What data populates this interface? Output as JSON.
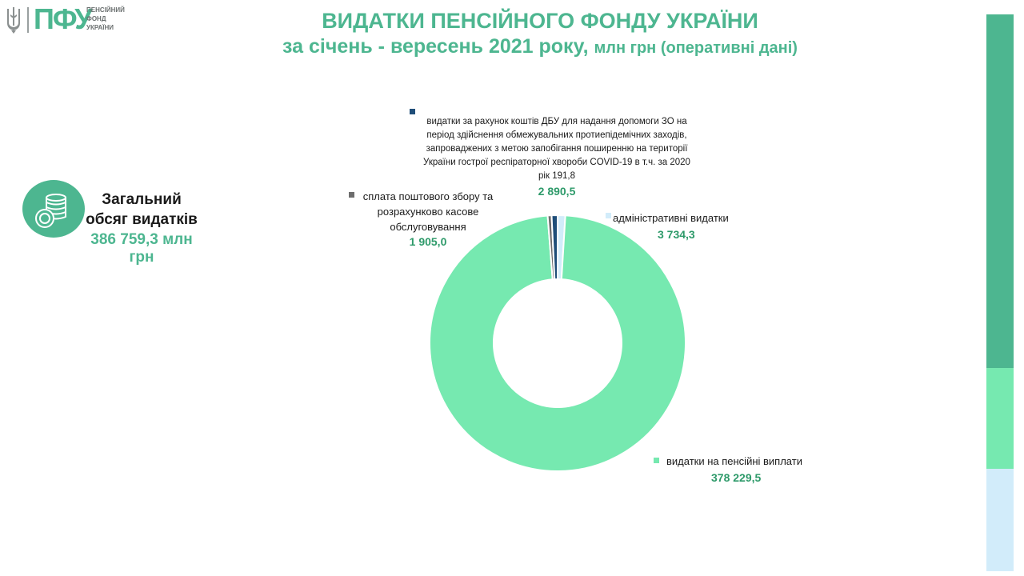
{
  "logo": {
    "mark": "ПФУ",
    "line1": "ПЕНСІЙНИЙ",
    "line2": "ФОНД",
    "line3": "УКРАЇНИ"
  },
  "title": {
    "line1": "ВИДАТКИ ПЕНСІЙНОГО ФОНДУ УКРАЇНИ",
    "line2_main": "за січень - вересень 2021 року,",
    "line2_small": "млн грн (оперативні дані)"
  },
  "total": {
    "label_line1": "Загальний",
    "label_line2": "обсяг видатків",
    "value": "386 759,3 млн грн",
    "icon": "coins-icon"
  },
  "colors": {
    "accent": "#4db690",
    "value_text": "#2e9a6a",
    "pension": "#76e9b0",
    "admin": "#d2ecfa",
    "dbu": "#1f4e79",
    "postal": "#6d6d6d"
  },
  "chart_data": {
    "type": "pie",
    "variant": "donut",
    "unit": "млн грн",
    "slices": [
      {
        "label": "видатки на пенсійні виплати",
        "value": 378229.5,
        "value_label": "378 229,5",
        "color": "#76e9b0"
      },
      {
        "label": "сплата поштового збору та розрахунково касове обслуговування",
        "label_lines": [
          "сплата поштового збору та",
          "розрахунково касове",
          "обслуговування"
        ],
        "value": 1905.0,
        "value_label": "1 905,0",
        "color": "#6d6d6d"
      },
      {
        "label": "видатки за рахунок коштів ДБУ для надання допомоги ЗО на період здійснення обмежувальних протиепідемічних заходів, запроваджених з метою запобігання поширенню на території України гострої респіраторної хвороби COVID-19 в т.ч. за 2020 рік 191,8",
        "label_lines": [
          "видатки за рахунок коштів ДБУ для надання допомоги ЗО на",
          "період здійснення обмежувальних протиепідемічних заходів,",
          "запроваджених з метою запобігання поширенню на території",
          "України гострої респіраторної хвороби COVID-19 в т.ч. за 2020",
          "рік 191,8"
        ],
        "value": 2890.5,
        "value_label": "2 890,5",
        "color": "#1f4e79"
      },
      {
        "label": "адміністративні видатки",
        "value": 3734.3,
        "value_label": "3 734,3",
        "color": "#d2ecfa"
      }
    ]
  }
}
